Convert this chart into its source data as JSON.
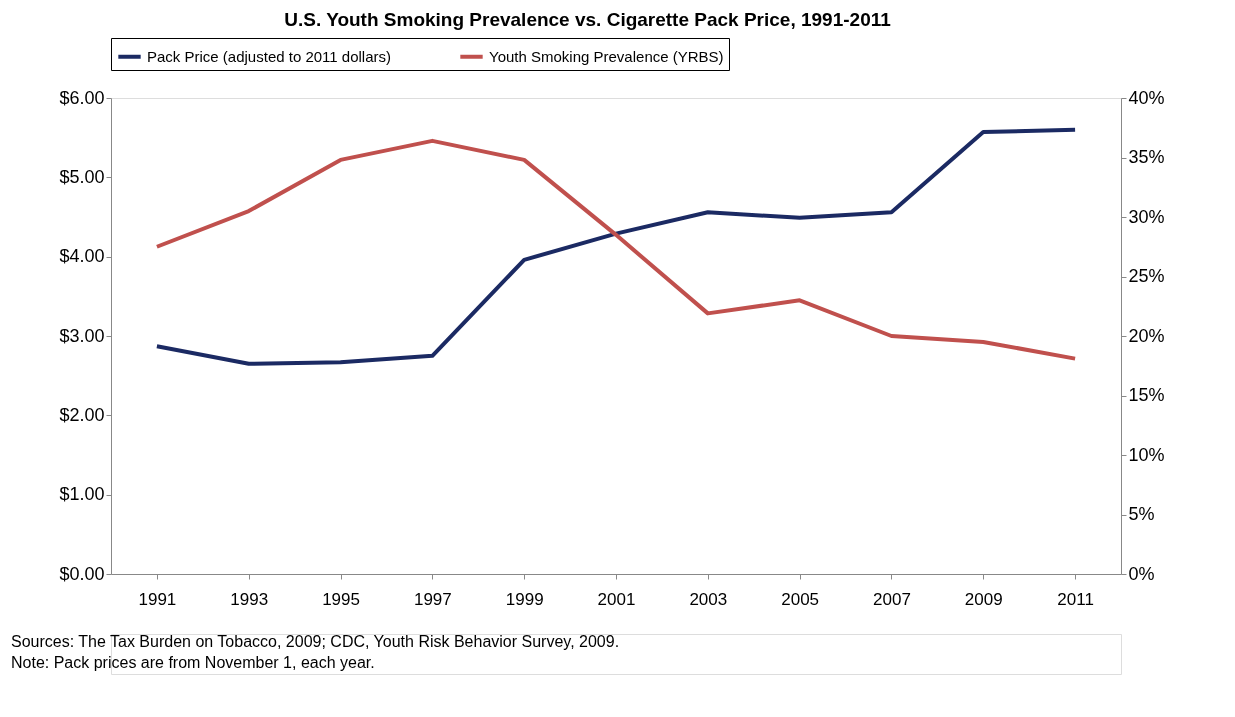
{
  "chart_data": {
    "type": "line",
    "title": "U.S. Youth Smoking Prevalence vs. Cigarette Pack Price, 1991-2011",
    "categories": [
      "1991",
      "1993",
      "1995",
      "1997",
      "1999",
      "2001",
      "2003",
      "2005",
      "2007",
      "2009",
      "2011"
    ],
    "series": [
      {
        "name": "Pack Price (adjusted to 2011 dollars)",
        "color": "#1b2a63",
        "values": [
          2.87,
          2.65,
          2.67,
          2.75,
          3.96,
          4.29,
          4.56,
          4.49,
          4.56,
          5.57,
          5.6
        ]
      },
      {
        "name": "Youth Smoking Prevalence (YRBS)",
        "color": "#c0504d",
        "axis": "y2",
        "values": [
          27.5,
          30.5,
          34.8,
          36.4,
          34.8,
          28.5,
          21.9,
          23.0,
          20.0,
          19.5,
          18.1
        ]
      }
    ],
    "ylim": [
      0,
      6
    ],
    "yticks": [
      {
        "value": 0,
        "label": "$0.00"
      },
      {
        "value": 1,
        "label": "$1.00"
      },
      {
        "value": 2,
        "label": "$2.00"
      },
      {
        "value": 3,
        "label": "$3.00"
      },
      {
        "value": 4,
        "label": "$4.00"
      },
      {
        "value": 5,
        "label": "$5.00"
      },
      {
        "value": 6,
        "label": "$6.00"
      }
    ],
    "y2lim": [
      0,
      40
    ],
    "y2ticks": [
      {
        "value": 0,
        "label": "0%"
      },
      {
        "value": 5,
        "label": "5%"
      },
      {
        "value": 10,
        "label": "10%"
      },
      {
        "value": 15,
        "label": "15%"
      },
      {
        "value": 20,
        "label": "20%"
      },
      {
        "value": 25,
        "label": "25%"
      },
      {
        "value": 30,
        "label": "30%"
      },
      {
        "value": 35,
        "label": "35%"
      },
      {
        "value": 40,
        "label": "40%"
      }
    ],
    "annotations": [
      "Sources: The Tax Burden on Tobacco, 2009; CDC,  Youth Risk Behavior Survey, 2009.",
      "Note: Pack prices are from November 1, each year."
    ],
    "legend": "top",
    "grid": false,
    "marker": "none",
    "line_style": "solid"
  }
}
